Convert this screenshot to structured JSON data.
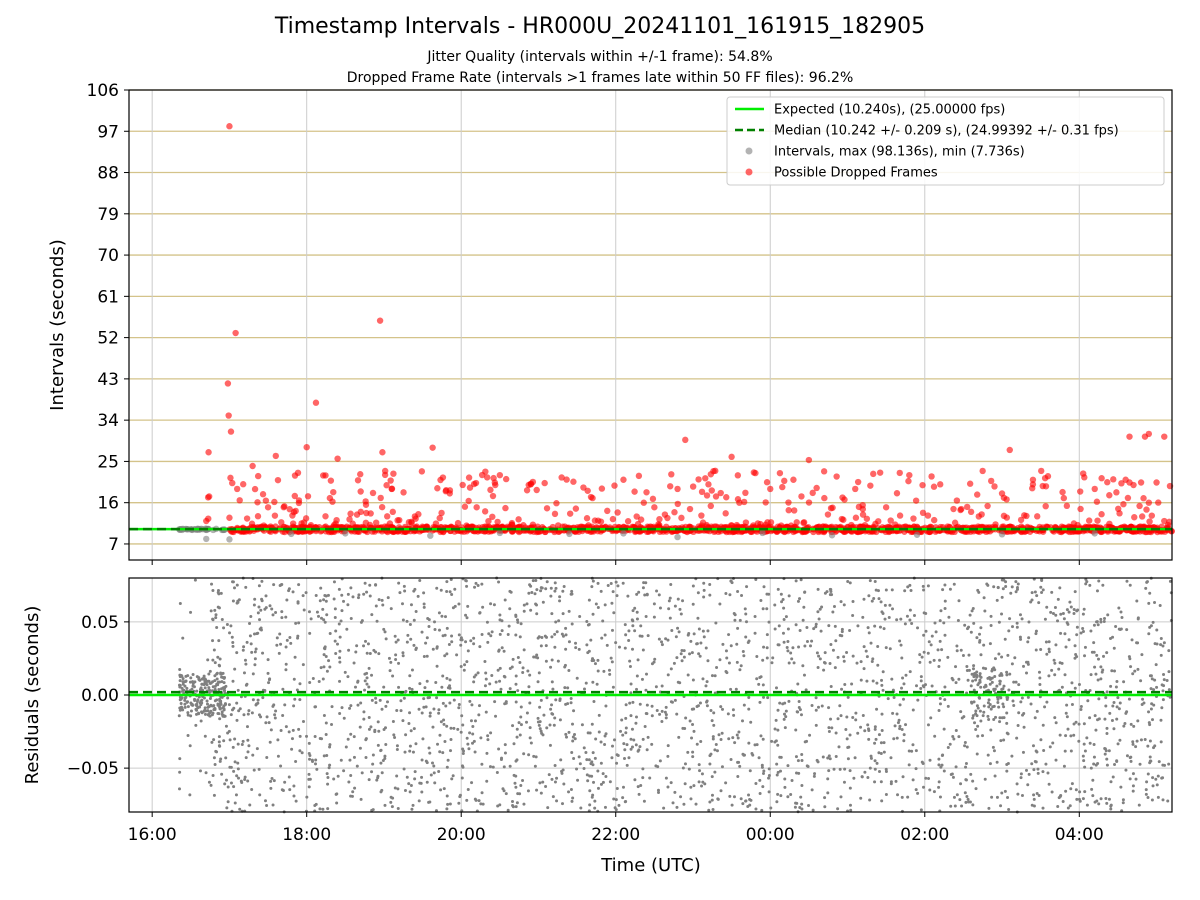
{
  "chart_data": [
    {
      "type": "scatter",
      "title": "Timestamp Intervals - HR000U_20241101_161915_182905",
      "subtitles": [
        "Jitter Quality (intervals within +/-1 frame): 54.8%",
        "Dropped Frame Rate (intervals >1 frames late within 50 FF files): 96.2%"
      ],
      "ylabel": "Intervals (seconds)",
      "ylim": [
        3.5,
        106
      ],
      "yticks": [
        7,
        16,
        25,
        34,
        43,
        52,
        61,
        70,
        79,
        88,
        97,
        106
      ],
      "xlim_hours": [
        15.7,
        29.2
      ],
      "grid": true,
      "legend_position": "top-right",
      "legend": [
        "Expected (10.240s), (25.00000 fps)",
        "Median (10.242 +/- 0.209 s), (24.99392 +/- 0.31 fps)",
        "Intervals, max (98.136s), min (7.736s)",
        "Possible Dropped Frames"
      ],
      "expected_interval": 10.24,
      "median_interval": 10.242,
      "series": [
        {
          "name": "Possible Dropped Frames",
          "color": "#ff0000",
          "points_hours_seconds": [
            [
              17.0,
              98.1
            ],
            [
              16.98,
              42.0
            ],
            [
              16.99,
              35.0
            ],
            [
              17.02,
              31.5
            ],
            [
              17.08,
              53.0
            ],
            [
              16.73,
              27.0
            ],
            [
              18.12,
              37.8
            ],
            [
              18.95,
              55.7
            ],
            [
              17.3,
              24.0
            ],
            [
              17.6,
              26.2
            ],
            [
              18.0,
              28.1
            ],
            [
              18.4,
              25.6
            ],
            [
              18.98,
              27.0
            ],
            [
              19.63,
              28.0
            ],
            [
              22.9,
              29.7
            ],
            [
              23.5,
              26.0
            ],
            [
              24.5,
              25.3
            ],
            [
              27.1,
              27.5
            ],
            [
              16.7,
              12.0
            ],
            [
              17.1,
              19.0
            ],
            [
              17.5,
              15.0
            ],
            [
              17.9,
              16.5
            ],
            [
              18.3,
              17.0
            ],
            [
              18.7,
              14.0
            ],
            [
              19.1,
              19.0
            ],
            [
              19.4,
              13.0
            ],
            [
              19.8,
              18.5
            ],
            [
              20.2,
              15.0
            ],
            [
              20.5,
              22.0
            ],
            [
              20.9,
              20.0
            ],
            [
              21.3,
              21.5
            ],
            [
              21.7,
              17.0
            ],
            [
              22.1,
              21.0
            ],
            [
              22.5,
              15.0
            ],
            [
              22.8,
              19.0
            ],
            [
              23.2,
              20.0
            ],
            [
              23.6,
              16.0
            ],
            [
              24.0,
              19.0
            ],
            [
              24.3,
              21.0
            ],
            [
              24.7,
              17.0
            ],
            [
              25.1,
              19.0
            ],
            [
              25.5,
              15.0
            ],
            [
              25.8,
              22.0
            ],
            [
              26.2,
              20.0
            ],
            [
              26.6,
              14.0
            ],
            [
              27.0,
              18.0
            ],
            [
              27.4,
              20.0
            ],
            [
              27.8,
              17.0
            ],
            [
              28.2,
              19.0
            ],
            [
              28.6,
              21.0
            ],
            [
              28.9,
              16.0
            ],
            [
              29.1,
              12.0
            ],
            [
              28.65,
              20.4
            ],
            [
              28.8,
              20.4
            ],
            [
              29.0,
              20.4
            ],
            [
              28.65,
              30.4
            ],
            [
              28.85,
              30.4
            ],
            [
              29.1,
              30.4
            ],
            [
              28.9,
              31.0
            ]
          ]
        },
        {
          "name": "Intervals, max (98.136s), min (7.736s)",
          "color": "#808080",
          "points_hours_seconds": [
            [
              16.35,
              10.2
            ],
            [
              16.5,
              10.2
            ],
            [
              16.7,
              8.1
            ],
            [
              17.0,
              8.0
            ],
            [
              17.8,
              9.2
            ],
            [
              18.5,
              9.3
            ],
            [
              19.6,
              8.8
            ],
            [
              20.5,
              9.4
            ],
            [
              21.4,
              9.2
            ],
            [
              22.1,
              9.3
            ],
            [
              22.8,
              8.5
            ],
            [
              23.9,
              9.4
            ],
            [
              24.8,
              8.9
            ],
            [
              25.9,
              9.0
            ],
            [
              27.0,
              9.1
            ],
            [
              28.2,
              9.3
            ]
          ]
        }
      ]
    },
    {
      "type": "scatter",
      "xlabel": "Time (UTC)",
      "ylabel": "Residuals (seconds)",
      "ylim": [
        -0.08,
        0.08
      ],
      "yticks": [
        -0.05,
        0.0,
        0.05
      ],
      "ytick_labels": [
        "−0.05",
        "0.00",
        "0.05"
      ],
      "xlim_hours": [
        15.7,
        29.2
      ],
      "xticks_hours": [
        16,
        18,
        20,
        22,
        24,
        26,
        28
      ],
      "xtick_labels": [
        "16:00",
        "18:00",
        "20:00",
        "22:00",
        "00:00",
        "02:00",
        "04:00"
      ],
      "expected_residual": 0.0,
      "median_residual": 0.002,
      "grid": true,
      "series": [
        {
          "name": "Residuals",
          "color": "#808080",
          "distribution": "approximately uniform between -0.08 and 0.08, dense cluster near 0 from 16:20 to 16:50 and near 02:50",
          "time_range_hours": [
            16.35,
            29.2
          ]
        }
      ]
    }
  ],
  "colors": {
    "expected": "#00ee00",
    "median": "#008000",
    "intervals": "#808080",
    "dropped": "#ff0000",
    "hgrid_top": "#d4c38a",
    "grid": "#cccccc"
  }
}
